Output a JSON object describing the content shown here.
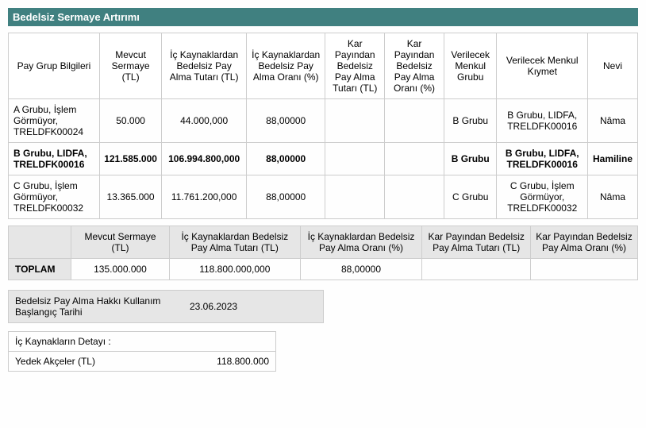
{
  "title": "Bedelsiz Sermaye Artırımı",
  "main_table": {
    "headers": [
      "Pay Grup Bilgileri",
      "Mevcut Sermaye (TL)",
      "İç Kaynaklardan Bedelsiz Pay Alma Tutarı (TL)",
      "İç Kaynaklardan Bedelsiz Pay Alma Oranı (%)",
      "Kar Payından Bedelsiz Pay Alma Tutarı (TL)",
      "Kar Payından Bedelsiz Pay Alma Oranı (%)",
      "Verilecek Menkul Grubu",
      "Verilecek Menkul Kıymet",
      "Nevi"
    ],
    "rows": [
      {
        "bold": false,
        "cells": [
          "A Grubu, İşlem Görmüyor, TRELDFK00024",
          "50.000",
          "44.000,000",
          "88,00000",
          "",
          "",
          "B Grubu",
          "B Grubu, LIDFA, TRELDFK00016",
          "Nâma"
        ]
      },
      {
        "bold": true,
        "cells": [
          "B Grubu, LIDFA, TRELDFK00016",
          "121.585.000",
          "106.994.800,000",
          "88,00000",
          "",
          "",
          "B Grubu",
          "B Grubu, LIDFA, TRELDFK00016",
          "Hamiline"
        ]
      },
      {
        "bold": false,
        "cells": [
          "C Grubu, İşlem Görmüyor, TRELDFK00032",
          "13.365.000",
          "11.761.200,000",
          "88,00000",
          "",
          "",
          "C Grubu",
          "C Grubu, İşlem Görmüyor, TRELDFK00032",
          "Nâma"
        ]
      }
    ]
  },
  "totals_table": {
    "headers": [
      "",
      "Mevcut Sermaye (TL)",
      "İç Kaynaklardan Bedelsiz Pay Alma Tutarı (TL)",
      "İç Kaynaklardan Bedelsiz Pay Alma Oranı (%)",
      "Kar Payından Bedelsiz Pay Alma Tutarı (TL)",
      "Kar Payından Bedelsiz Pay Alma Oranı (%)"
    ],
    "label": "TOPLAM",
    "values": [
      "135.000.000",
      "118.800.000,000",
      "88,00000",
      "",
      ""
    ]
  },
  "start_date": {
    "label": "Bedelsiz Pay Alma Hakkı Kullanım Başlangıç Tarihi",
    "value": "23.06.2023"
  },
  "detail": {
    "header": "İç Kaynakların Detayı :",
    "row_label": "Yedek Akçeler (TL)",
    "row_value": "118.800.000"
  }
}
